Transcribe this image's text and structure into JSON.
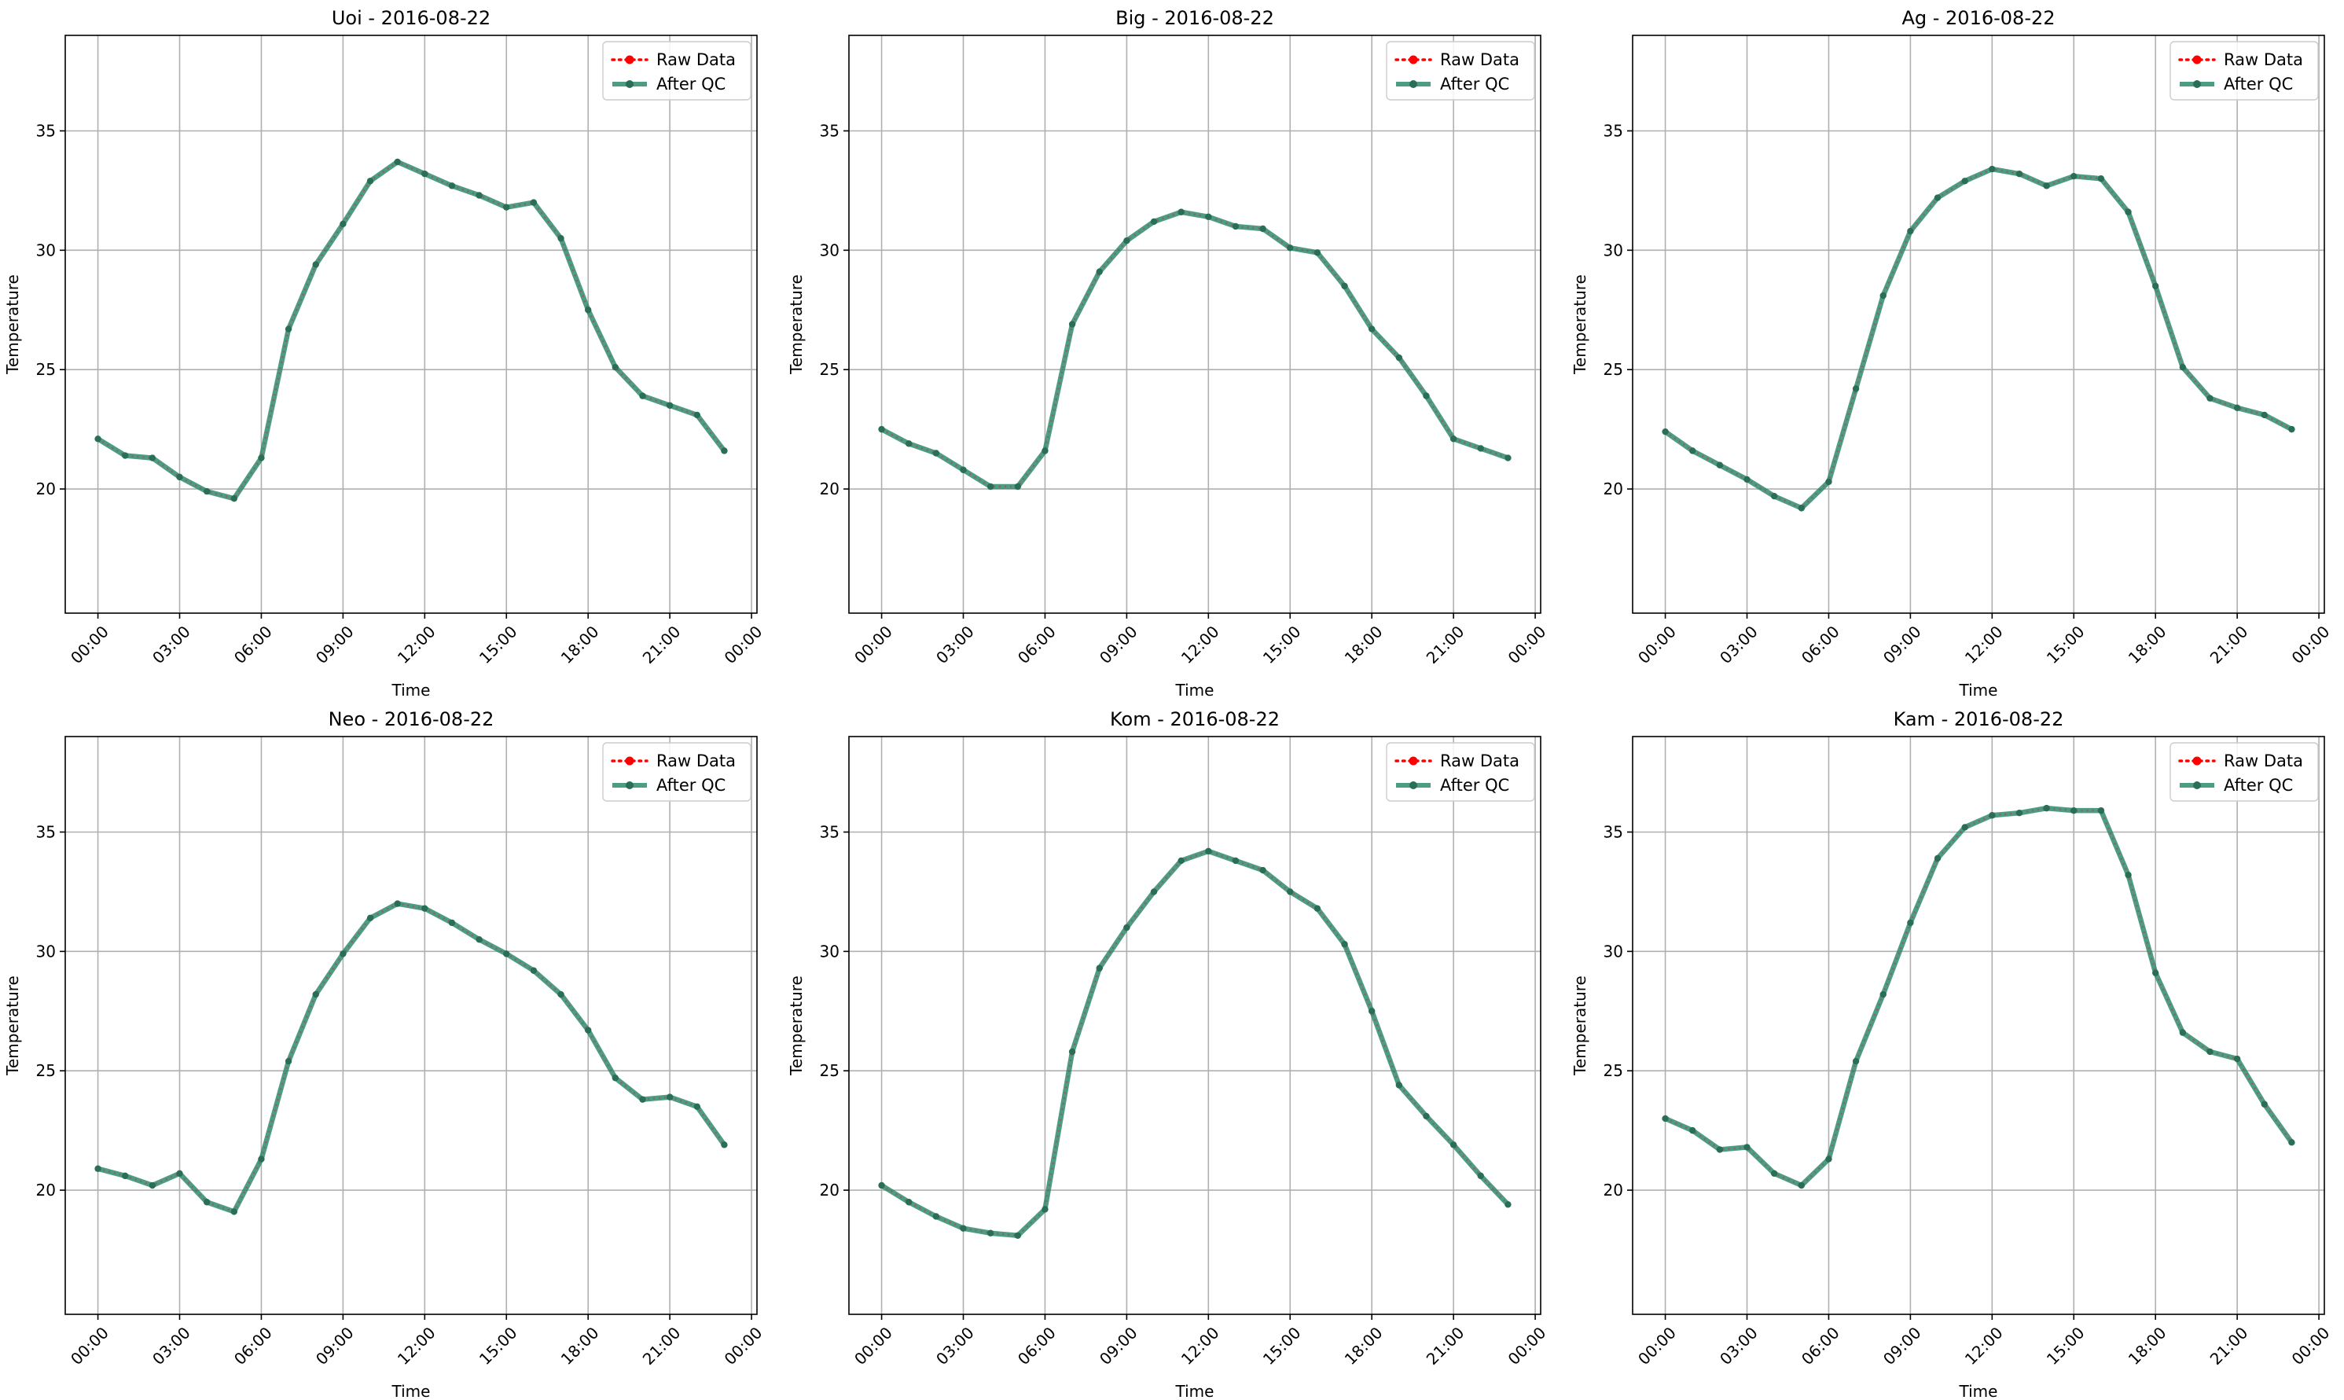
{
  "figure": {
    "legend_position": "upper right",
    "grid": true
  },
  "colors": {
    "raw": "#ff0000",
    "qc": "#2e8b6e",
    "grid": "#b0b0b0"
  },
  "legend_labels": [
    "Raw Data",
    "After QC"
  ],
  "chart_data": [
    {
      "type": "line",
      "title": "Uoi - 2016-08-22",
      "xlabel": "Time",
      "ylabel": "Temperature",
      "xlim": [
        -1.2,
        24.2
      ],
      "ylim": [
        14.8,
        39.0
      ],
      "yticks": [
        20,
        25,
        30,
        35
      ],
      "xticks": [
        "00:00",
        "03:00",
        "06:00",
        "09:00",
        "12:00",
        "15:00",
        "18:00",
        "21:00",
        "00:00"
      ],
      "x_hours": [
        0,
        1,
        2,
        3,
        4,
        5,
        6,
        7,
        8,
        9,
        10,
        11,
        12,
        13,
        14,
        15,
        16,
        17,
        18,
        19,
        20,
        21,
        22,
        23
      ],
      "series": [
        {
          "name": "Raw Data",
          "values": [
            22.1,
            21.4,
            21.3,
            20.5,
            19.9,
            19.6,
            21.3,
            26.7,
            29.4,
            31.1,
            32.9,
            33.7,
            33.2,
            32.7,
            32.3,
            31.8,
            32.0,
            30.5,
            27.5,
            25.1,
            23.9,
            23.5,
            23.1,
            21.6
          ]
        },
        {
          "name": "After QC",
          "values": [
            22.1,
            21.4,
            21.3,
            20.5,
            19.9,
            19.6,
            21.3,
            26.7,
            29.4,
            31.1,
            32.9,
            33.7,
            33.2,
            32.7,
            32.3,
            31.8,
            32.0,
            30.5,
            27.5,
            25.1,
            23.9,
            23.5,
            23.1,
            21.6
          ]
        }
      ]
    },
    {
      "type": "line",
      "title": "Big - 2016-08-22",
      "xlabel": "Time",
      "ylabel": "Temperature",
      "xlim": [
        -1.2,
        24.2
      ],
      "ylim": [
        14.8,
        39.0
      ],
      "yticks": [
        20,
        25,
        30,
        35
      ],
      "xticks": [
        "00:00",
        "03:00",
        "06:00",
        "09:00",
        "12:00",
        "15:00",
        "18:00",
        "21:00",
        "00:00"
      ],
      "x_hours": [
        0,
        1,
        2,
        3,
        4,
        5,
        6,
        7,
        8,
        9,
        10,
        11,
        12,
        13,
        14,
        15,
        16,
        17,
        18,
        19,
        20,
        21,
        22,
        23
      ],
      "series": [
        {
          "name": "Raw Data",
          "values": [
            22.5,
            21.9,
            21.5,
            20.8,
            20.1,
            20.1,
            21.6,
            26.9,
            29.1,
            30.4,
            31.2,
            31.6,
            31.4,
            31.0,
            30.9,
            30.1,
            29.9,
            28.5,
            26.7,
            25.5,
            23.9,
            22.1,
            21.7,
            21.3
          ]
        },
        {
          "name": "After QC",
          "values": [
            22.5,
            21.9,
            21.5,
            20.8,
            20.1,
            20.1,
            21.6,
            26.9,
            29.1,
            30.4,
            31.2,
            31.6,
            31.4,
            31.0,
            30.9,
            30.1,
            29.9,
            28.5,
            26.7,
            25.5,
            23.9,
            22.1,
            21.7,
            21.3
          ]
        }
      ]
    },
    {
      "type": "line",
      "title": "Ag - 2016-08-22",
      "xlabel": "Time",
      "ylabel": "Temperature",
      "xlim": [
        -1.2,
        24.2
      ],
      "ylim": [
        14.8,
        39.0
      ],
      "yticks": [
        20,
        25,
        30,
        35
      ],
      "xticks": [
        "00:00",
        "03:00",
        "06:00",
        "09:00",
        "12:00",
        "15:00",
        "18:00",
        "21:00",
        "00:00"
      ],
      "x_hours": [
        0,
        1,
        2,
        3,
        4,
        5,
        6,
        7,
        8,
        9,
        10,
        11,
        12,
        13,
        14,
        15,
        16,
        17,
        18,
        19,
        20,
        21,
        22,
        23
      ],
      "series": [
        {
          "name": "Raw Data",
          "values": [
            22.4,
            21.6,
            21.0,
            20.4,
            19.7,
            19.2,
            20.3,
            24.2,
            28.1,
            30.8,
            32.2,
            32.9,
            33.4,
            33.2,
            32.7,
            33.1,
            33.0,
            31.6,
            28.5,
            25.1,
            23.8,
            23.4,
            23.1,
            22.5
          ]
        },
        {
          "name": "After QC",
          "values": [
            22.4,
            21.6,
            21.0,
            20.4,
            19.7,
            19.2,
            20.3,
            24.2,
            28.1,
            30.8,
            32.2,
            32.9,
            33.4,
            33.2,
            32.7,
            33.1,
            33.0,
            31.6,
            28.5,
            25.1,
            23.8,
            23.4,
            23.1,
            22.5
          ]
        }
      ]
    },
    {
      "type": "line",
      "title": "Neo - 2016-08-22",
      "xlabel": "Time",
      "ylabel": "Temperature",
      "xlim": [
        -1.2,
        24.2
      ],
      "ylim": [
        14.8,
        39.0
      ],
      "yticks": [
        20,
        25,
        30,
        35
      ],
      "xticks": [
        "00:00",
        "03:00",
        "06:00",
        "09:00",
        "12:00",
        "15:00",
        "18:00",
        "21:00",
        "00:00"
      ],
      "x_hours": [
        0,
        1,
        2,
        3,
        4,
        5,
        6,
        7,
        8,
        9,
        10,
        11,
        12,
        13,
        14,
        15,
        16,
        17,
        18,
        19,
        20,
        21,
        22,
        23
      ],
      "series": [
        {
          "name": "Raw Data",
          "values": [
            20.9,
            20.6,
            20.2,
            20.7,
            19.5,
            19.1,
            21.3,
            25.4,
            28.2,
            29.9,
            31.4,
            32.0,
            31.8,
            31.2,
            30.5,
            29.9,
            29.2,
            28.2,
            26.7,
            24.7,
            23.8,
            23.9,
            23.5,
            21.9
          ]
        },
        {
          "name": "After QC",
          "values": [
            20.9,
            20.6,
            20.2,
            20.7,
            19.5,
            19.1,
            21.3,
            25.4,
            28.2,
            29.9,
            31.4,
            32.0,
            31.8,
            31.2,
            30.5,
            29.9,
            29.2,
            28.2,
            26.7,
            24.7,
            23.8,
            23.9,
            23.5,
            21.9
          ]
        }
      ]
    },
    {
      "type": "line",
      "title": "Kom - 2016-08-22",
      "xlabel": "Time",
      "ylabel": "Temperature",
      "xlim": [
        -1.2,
        24.2
      ],
      "ylim": [
        14.8,
        39.0
      ],
      "yticks": [
        20,
        25,
        30,
        35
      ],
      "xticks": [
        "00:00",
        "03:00",
        "06:00",
        "09:00",
        "12:00",
        "15:00",
        "18:00",
        "21:00",
        "00:00"
      ],
      "x_hours": [
        0,
        1,
        2,
        3,
        4,
        5,
        6,
        7,
        8,
        9,
        10,
        11,
        12,
        13,
        14,
        15,
        16,
        17,
        18,
        19,
        20,
        21,
        22,
        23
      ],
      "series": [
        {
          "name": "Raw Data",
          "values": [
            20.2,
            19.5,
            18.9,
            18.4,
            18.2,
            18.1,
            19.2,
            25.8,
            29.3,
            31.0,
            32.5,
            33.8,
            34.2,
            33.8,
            33.4,
            32.5,
            31.8,
            30.3,
            27.5,
            24.4,
            23.1,
            21.9,
            20.6,
            19.4
          ]
        },
        {
          "name": "After QC",
          "values": [
            20.2,
            19.5,
            18.9,
            18.4,
            18.2,
            18.1,
            19.2,
            25.8,
            29.3,
            31.0,
            32.5,
            33.8,
            34.2,
            33.8,
            33.4,
            32.5,
            31.8,
            30.3,
            27.5,
            24.4,
            23.1,
            21.9,
            20.6,
            19.4
          ]
        }
      ]
    },
    {
      "type": "line",
      "title": "Kam - 2016-08-22",
      "xlabel": "Time",
      "ylabel": "Temperature",
      "xlim": [
        -1.2,
        24.2
      ],
      "ylim": [
        14.8,
        39.0
      ],
      "yticks": [
        20,
        25,
        30,
        35
      ],
      "xticks": [
        "00:00",
        "03:00",
        "06:00",
        "09:00",
        "12:00",
        "15:00",
        "18:00",
        "21:00",
        "00:00"
      ],
      "x_hours": [
        0,
        1,
        2,
        3,
        4,
        5,
        6,
        7,
        8,
        9,
        10,
        11,
        12,
        13,
        14,
        15,
        16,
        17,
        18,
        19,
        20,
        21,
        22,
        23
      ],
      "series": [
        {
          "name": "Raw Data",
          "values": [
            23.0,
            22.5,
            21.7,
            21.8,
            20.7,
            20.2,
            21.3,
            25.4,
            28.2,
            31.2,
            33.9,
            35.2,
            35.7,
            35.8,
            36.0,
            35.9,
            35.9,
            33.2,
            29.1,
            26.6,
            25.8,
            25.5,
            23.6,
            22.0
          ]
        },
        {
          "name": "After QC",
          "values": [
            23.0,
            22.5,
            21.7,
            21.8,
            20.7,
            20.2,
            21.3,
            25.4,
            28.2,
            31.2,
            33.9,
            35.2,
            35.7,
            35.8,
            36.0,
            35.9,
            35.9,
            33.2,
            29.1,
            26.6,
            25.8,
            25.5,
            23.6,
            22.0
          ]
        }
      ]
    }
  ]
}
